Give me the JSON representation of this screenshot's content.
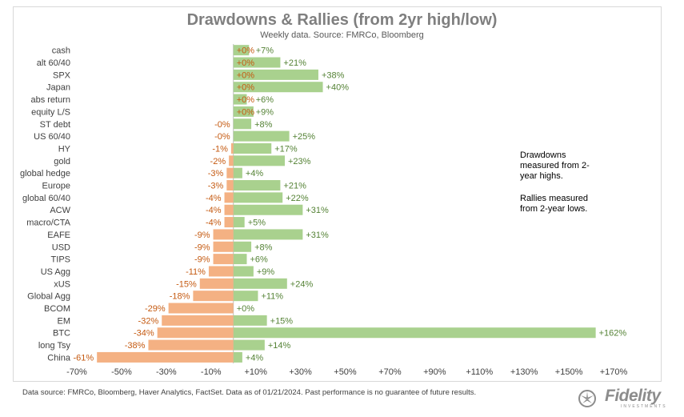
{
  "chart_data": {
    "type": "bar",
    "orientation": "horizontal",
    "title": "Drawdowns & Rallies (from 2yr high/low)",
    "subtitle": "Weekly data.  Source: FMRCo, Bloomberg",
    "categories": [
      "cash",
      "alt 60/40",
      "SPX",
      "Japan",
      "abs return",
      "equity L/S",
      "ST debt",
      "US 60/40",
      "HY",
      "gold",
      "global hedge",
      "Europe",
      "global 60/40",
      "ACW",
      "macro/CTA",
      "EAFE",
      "USD",
      "TIPS",
      "US Agg",
      "xUS",
      "Global Agg",
      "BCOM",
      "EM",
      "BTC",
      "long Tsy",
      "China"
    ],
    "series": [
      {
        "name": "Drawdown from 2-year high",
        "color": "#f4b183",
        "values": [
          0,
          0,
          0,
          0,
          0,
          0,
          0,
          0,
          -1,
          -2,
          -3,
          -3,
          -4,
          -4,
          -4,
          -9,
          -9,
          -9,
          -11,
          -15,
          -18,
          -29,
          -32,
          -34,
          -38,
          -61
        ],
        "labels": [
          "+0%",
          "+0%",
          "+0%",
          "+0%",
          "+0%",
          "+0%",
          "-0%",
          "-0%",
          "-1%",
          "-2%",
          "-3%",
          "-3%",
          "-4%",
          "-4%",
          "-4%",
          "-9%",
          "-9%",
          "-9%",
          "-11%",
          "-15%",
          "-18%",
          "-29%",
          "-32%",
          "-34%",
          "-38%",
          "-61%"
        ]
      },
      {
        "name": "Rally from 2-year low",
        "color": "#a9d18e",
        "values": [
          7,
          21,
          38,
          40,
          6,
          9,
          8,
          25,
          17,
          23,
          4,
          21,
          22,
          31,
          5,
          31,
          8,
          6,
          9,
          24,
          11,
          0,
          15,
          162,
          14,
          4
        ],
        "labels": [
          "+7%",
          "+21%",
          "+38%",
          "+40%",
          "+6%",
          "+9%",
          "+8%",
          "+25%",
          "+17%",
          "+23%",
          "+4%",
          "+21%",
          "+22%",
          "+31%",
          "+5%",
          "+31%",
          "+8%",
          "+6%",
          "+9%",
          "+24%",
          "+11%",
          "+0%",
          "+15%",
          "+162%",
          "+14%",
          "+4%"
        ]
      }
    ],
    "xlim": [
      -70,
      170
    ],
    "xticks": [
      -70,
      -50,
      -30,
      -10,
      10,
      30,
      50,
      70,
      90,
      110,
      130,
      150,
      170
    ],
    "xtick_labels": [
      "-70%",
      "-50%",
      "-30%",
      "-10%",
      "+10%",
      "+30%",
      "+50%",
      "+70%",
      "+90%",
      "+110%",
      "+130%",
      "+150%",
      "+170%"
    ],
    "neg_label_color": "#c55a11",
    "pos_label_color": "#548235"
  },
  "notes": {
    "drawdowns": [
      "Drawdowns",
      "measured from 2-",
      "year highs."
    ],
    "rallies": [
      "Rallies measured",
      "from 2-year lows."
    ]
  },
  "footer": "Data source: FMRCo, Bloomberg, Haver Analytics, FactSet. Data as of 01/21/2024. Past performance is no guarantee of future results.",
  "logo": {
    "name": "Fidelity",
    "sub": "INVESTMENTS"
  }
}
